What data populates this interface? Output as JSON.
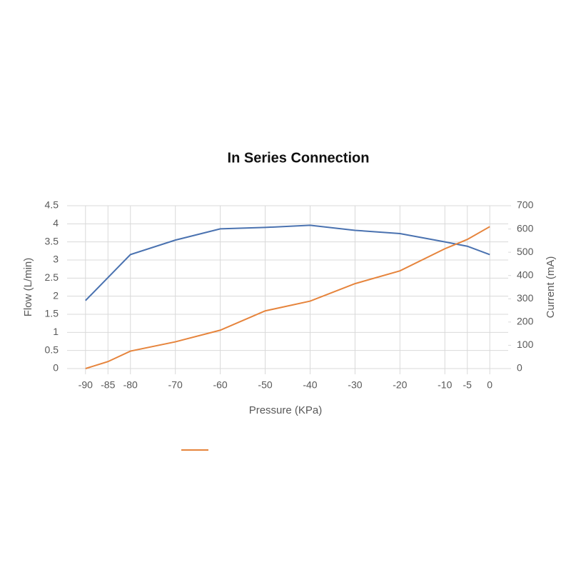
{
  "chart_data": {
    "type": "line",
    "title": "In Series Connection",
    "x_label": "Pressure (KPa)",
    "y_label": "Flow (L/min)",
    "y2_label": "Current (mA)",
    "xlim": [
      -94.1,
      4.1
    ],
    "xticks": [
      -90,
      -85,
      -80,
      -70,
      -60,
      -50,
      -40,
      -30,
      -20,
      -10,
      -5,
      0
    ],
    "ylim": [
      0,
      4.5
    ],
    "yticks": [
      0,
      0.5,
      1,
      1.5,
      2,
      2.5,
      3,
      3.5,
      4,
      4.5
    ],
    "y2lim": [
      0,
      700
    ],
    "y2ticks": [
      0,
      100,
      200,
      300,
      400,
      500,
      600,
      700
    ],
    "grid": true,
    "series": [
      {
        "color": "#4a72b0",
        "x": [
          -90,
          -80,
          -70,
          -60,
          -50,
          -40,
          -30,
          -20,
          -10,
          -5,
          0
        ],
        "values": [
          1.88,
          3.15,
          3.55,
          3.86,
          3.9,
          3.96,
          3.82,
          3.73,
          3.5,
          3.38,
          3.15
        ]
      },
      {
        "color": "#e6843c",
        "axis": "y2",
        "x": [
          -90,
          -85,
          -80,
          -70,
          -60,
          -50,
          -40,
          -30,
          -20,
          -10,
          -5,
          0
        ],
        "values": [
          0,
          30,
          75,
          115,
          165,
          248,
          290,
          365,
          420,
          515,
          555,
          610
        ]
      }
    ]
  }
}
